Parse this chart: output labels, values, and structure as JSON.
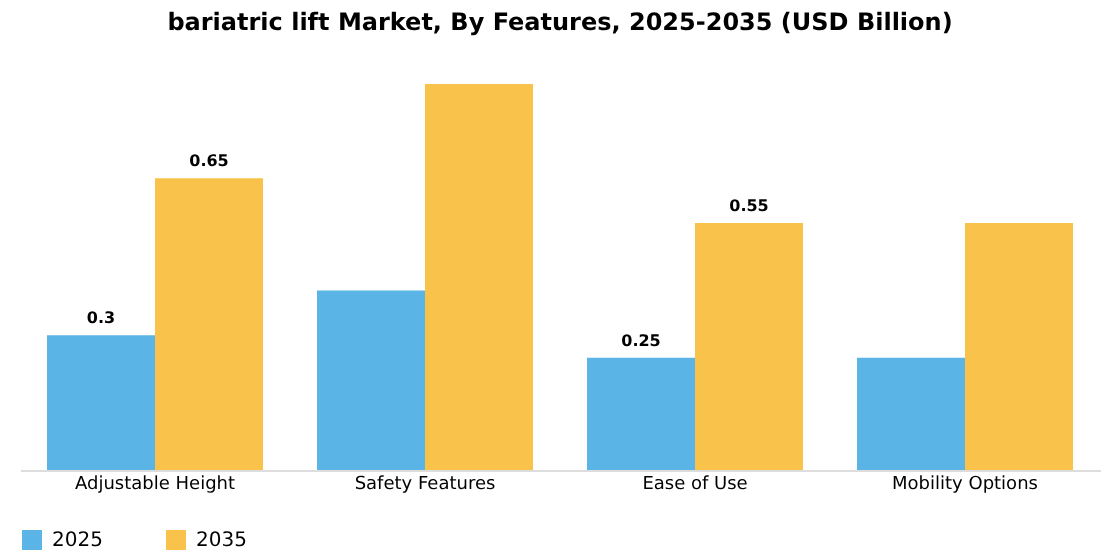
{
  "chart_data": {
    "type": "bar",
    "title": "bariatric lift Market, By Features, 2025-2035 (USD Billion)",
    "categories": [
      "Adjustable Height",
      "Safety Features",
      "Ease of Use",
      "Mobility Options"
    ],
    "series": [
      {
        "name": "2025",
        "color": "#5ab4e5",
        "values": [
          0.3,
          0.4,
          0.25,
          0.25
        ],
        "value_labels": [
          "0.3",
          null,
          "0.25",
          null
        ]
      },
      {
        "name": "2035",
        "color": "#f9c24a",
        "values": [
          0.65,
          0.86,
          0.55,
          0.55
        ],
        "value_labels": [
          "0.65",
          null,
          "0.55",
          null
        ]
      }
    ],
    "legend": "bottom",
    "grid": false
  }
}
